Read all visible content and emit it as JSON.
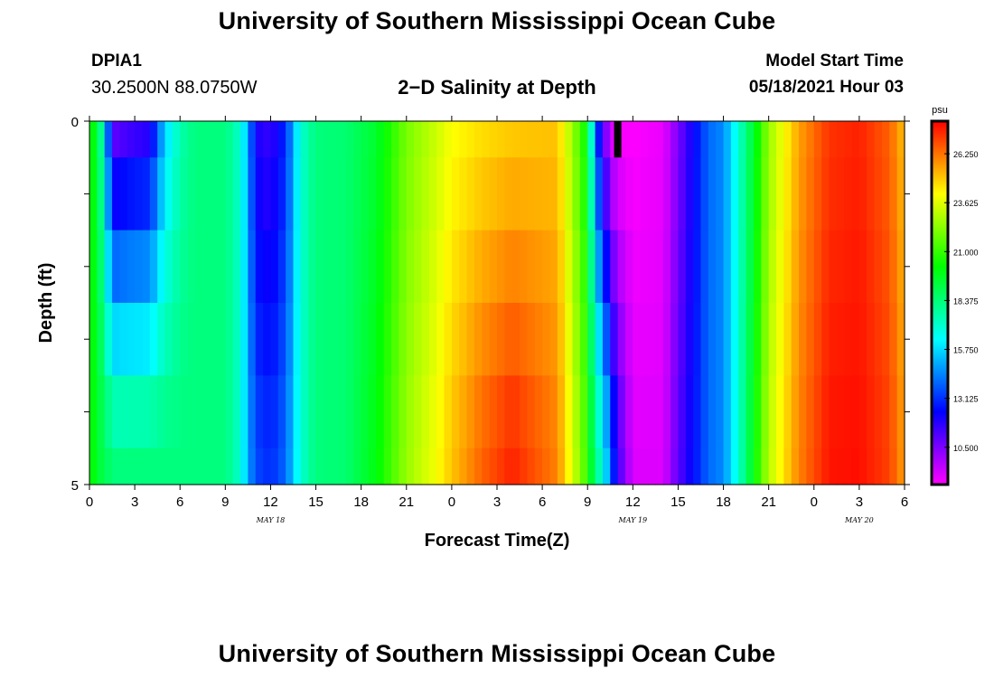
{
  "header": {
    "main_title": "University of Southern Mississippi Ocean Cube",
    "station": "DPIA1",
    "latlon": "30.2500N  88.0750W",
    "plot_title": "2−D Salinity at Depth",
    "start_label": "Model Start Time",
    "start_value": "05/18/2021 Hour 03"
  },
  "footer": {
    "title": "University of Southern Mississippi Ocean Cube"
  },
  "chart_data": {
    "type": "heatmap",
    "title": "2-D Salinity at Depth",
    "xlabel": "Forecast Time(Z)",
    "ylabel": "Depth (ft)",
    "x_tick_labels": [
      "0",
      "3",
      "6",
      "9",
      "12",
      "15",
      "18",
      "21",
      "0",
      "3",
      "6",
      "9",
      "12",
      "15",
      "18",
      "21",
      "0",
      "3",
      "6"
    ],
    "date_labels": [
      {
        "label": "MAY 18",
        "hour": 12
      },
      {
        "label": "MAY 19",
        "hour": 36
      },
      {
        "label": "MAY 20",
        "hour": 51
      }
    ],
    "x_range_hours": [
      0,
      54
    ],
    "x_step_hours": 0.5,
    "y_range": [
      0,
      5
    ],
    "y_tick_labels": [
      "0",
      "5"
    ],
    "depth_levels_ft": [
      0,
      0.5,
      1.5,
      2.5,
      3.5,
      4.5
    ],
    "colorbar": {
      "unit": "psu",
      "range": [
        8.5,
        28
      ],
      "tick_labels": [
        "26.250",
        "23.625",
        "21.000",
        "18.375",
        "15.750",
        "13.125",
        "10.500"
      ],
      "tick_values": [
        26.25,
        23.625,
        21.0,
        18.375,
        15.75,
        13.125,
        10.5
      ]
    },
    "salinity_profile_psu": {
      "hours": [
        0,
        0.5,
        1,
        1.5,
        2.5,
        4,
        5,
        6,
        7,
        9,
        10,
        10.5,
        11,
        12,
        13,
        14,
        15,
        17,
        19,
        21,
        23,
        24,
        26,
        28,
        31,
        33,
        33.5,
        34,
        34.5,
        35,
        36,
        38,
        39,
        41,
        42,
        43,
        44,
        45,
        47,
        49,
        51,
        53,
        54
      ],
      "surface": [
        20.5,
        19.5,
        16.5,
        10.5,
        11.0,
        11.5,
        15.5,
        17.5,
        18.3,
        18.3,
        17.0,
        15.0,
        12.0,
        11.5,
        13.0,
        17.0,
        18.3,
        18.5,
        19.5,
        22.0,
        23.3,
        24.0,
        24.5,
        24.8,
        25.0,
        20.0,
        14.0,
        11.0,
        9.0,
        8.5,
        8.5,
        8.8,
        10.5,
        14.0,
        14.5,
        17.0,
        19.5,
        22.5,
        25.5,
        27.2,
        27.5,
        26.5,
        25.0
      ],
      "bottom": [
        20.5,
        19.5,
        19.0,
        18.3,
        18.3,
        18.3,
        18.3,
        18.3,
        18.3,
        18.3,
        17.0,
        15.0,
        13.5,
        13.0,
        14.0,
        17.0,
        18.3,
        18.5,
        20.0,
        22.5,
        24.0,
        25.0,
        26.5,
        27.5,
        26.0,
        21.0,
        18.0,
        17.0,
        14.0,
        11.5,
        9.0,
        9.0,
        11.0,
        14.0,
        14.5,
        17.0,
        20.0,
        23.0,
        26.0,
        27.7,
        27.8,
        27.0,
        25.5
      ]
    },
    "black_marker": {
      "hour": 35,
      "depth_from": 0,
      "depth_to": 0.5
    }
  }
}
